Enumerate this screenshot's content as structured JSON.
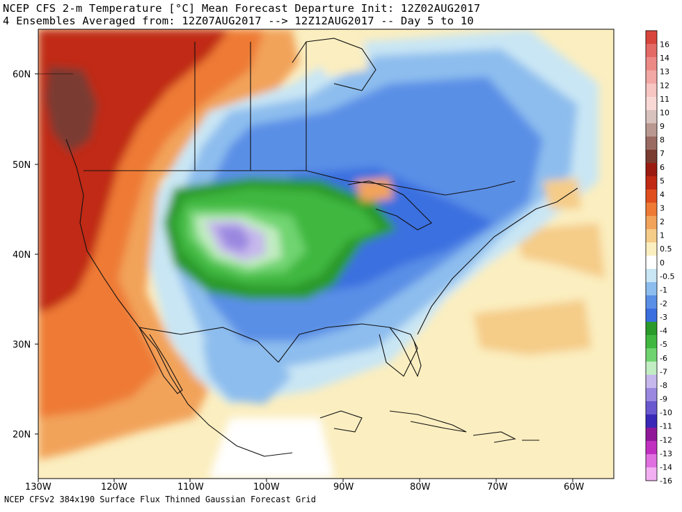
{
  "title_line1": "NCEP CFS 2-m Temperature [°C] Mean Forecast Departure Init: 12Z02AUG2017",
  "title_line2": "4 Ensembles Averaged from: 12Z07AUG2017 --> 12Z12AUG2017 -- Day 5 to 10",
  "footer": "NCEP CFSv2 384x190 Surface Flux Thinned Gaussian Forecast Grid",
  "lat_labels": [
    "60N",
    "50N",
    "40N",
    "30N",
    "20N"
  ],
  "lon_labels": [
    "130W",
    "120W",
    "110W",
    "100W",
    "90W",
    "80W",
    "70W",
    "60W"
  ],
  "colorbar": {
    "labels": [
      "16",
      "14",
      "13",
      "12",
      "11",
      "10",
      "9",
      "8",
      "7",
      "6",
      "5",
      "4",
      "3",
      "2",
      "1",
      "0.5",
      "0",
      "-0.5",
      "-1",
      "-2",
      "-3",
      "-4",
      "-5",
      "-6",
      "-7",
      "-8",
      "-9",
      "-10",
      "-11",
      "-12",
      "-13",
      "-14",
      "-16"
    ],
    "colors": [
      "#d8453b",
      "#e46a66",
      "#ec8a86",
      "#f2a8a4",
      "#f7c5c2",
      "#f9d9d6",
      "#d8c2bd",
      "#b89890",
      "#9a6b63",
      "#7a3b30",
      "#9b1b10",
      "#c02a12",
      "#e04e1e",
      "#ee7a35",
      "#f2a35a",
      "#f5cc88",
      "#fbeec0",
      "#ffffff",
      "#c9e6f4",
      "#8dbdee",
      "#5a8fe6",
      "#3a6fe0",
      "#2a9a2a",
      "#40b840",
      "#6fd46f",
      "#c2ecc2",
      "#c6b8ec",
      "#9a88e0",
      "#6a58d0",
      "#3a28b8",
      "#901898",
      "#c030c0",
      "#e070e0",
      "#f2b0f2"
    ]
  },
  "map_colors": {
    "ocean_neutral": "#ffffff",
    "warm_light": "#fbeec0",
    "warm_mid": "#f5cc88",
    "warm_orange": "#ee7a35",
    "warm_red": "#c02a12",
    "warm_dark": "#7a3b30",
    "cool_light": "#c9e6f4",
    "cool_mid": "#8dbdee",
    "cool_blue": "#5a8fe6",
    "cool_deep": "#3a6fe0",
    "green_dark": "#2a9a2a",
    "green_mid": "#40b840",
    "green_light": "#6fd46f",
    "green_pale": "#c2ecc2",
    "purple_light": "#c6b8ec",
    "purple_mid": "#9a88e0"
  }
}
